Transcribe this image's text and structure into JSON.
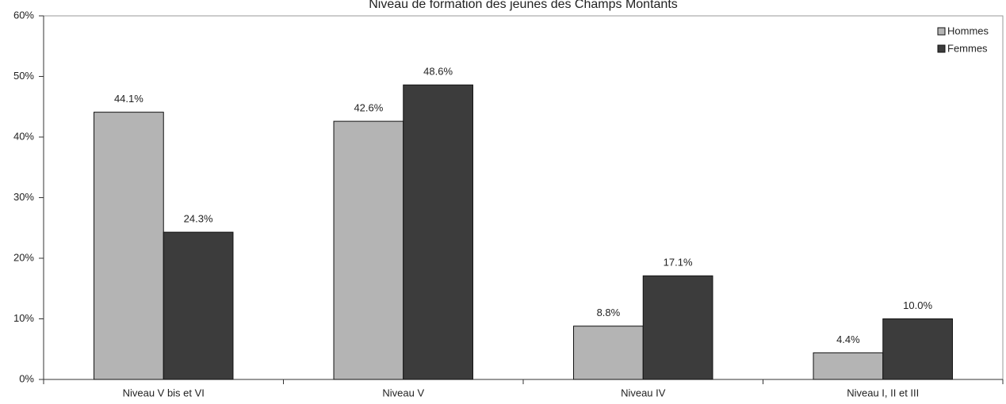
{
  "chart_data": {
    "type": "bar",
    "title": "Niveau de formation des jeunes des Champs Montants",
    "categories": [
      "Niveau V bis et VI",
      "Niveau V",
      "Niveau IV",
      "Niveau I, II et III"
    ],
    "series": [
      {
        "name": "Hommes",
        "color": "#b4b4b4",
        "values": [
          44.1,
          42.6,
          8.8,
          4.4
        ],
        "value_labels": [
          "44.1%",
          "42.6%",
          "8.8%",
          "4.4%"
        ]
      },
      {
        "name": "Femmes",
        "color": "#3c3c3c",
        "values": [
          24.3,
          48.6,
          17.1,
          10.0
        ],
        "value_labels": [
          "24.3%",
          "48.6%",
          "17.1%",
          "10.0%"
        ]
      }
    ],
    "ylim": [
      0,
      60
    ],
    "yticks": [
      {
        "value": 0,
        "label": "0%"
      },
      {
        "value": 10,
        "label": "10%"
      },
      {
        "value": 20,
        "label": "20%"
      },
      {
        "value": 30,
        "label": "30%"
      },
      {
        "value": 40,
        "label": "40%"
      },
      {
        "value": 50,
        "label": "50%"
      },
      {
        "value": 60,
        "label": "60%"
      }
    ],
    "legend": "top-right"
  }
}
